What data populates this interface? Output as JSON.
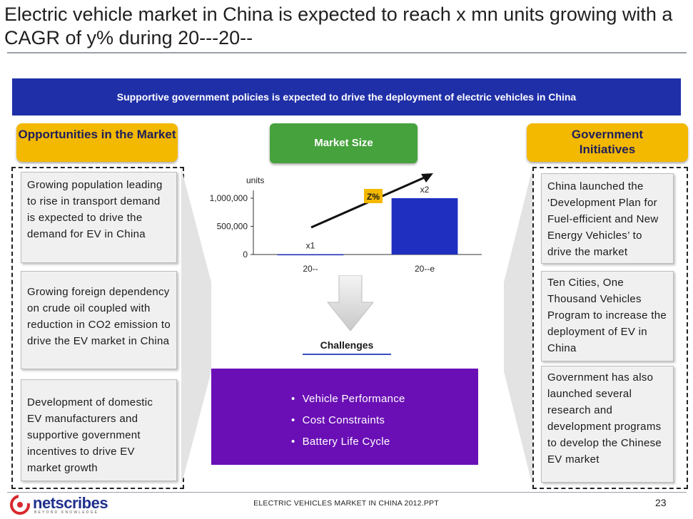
{
  "title": "Electric vehicle market in China is expected to reach x mn units growing with a CAGR of y% during 20---20--",
  "banner": "Supportive government policies is expected to drive the deployment of electric vehicles in China",
  "left_header": "Opportunities in the Market",
  "center_header": "Market Size",
  "right_header": "Government Initiatives",
  "opportunities": [
    "Growing population leading to rise in transport demand is expected to drive the demand for EV in China",
    "Growing foreign dependency  on crude oil coupled with reduction in CO2 emission to drive the EV market in China",
    "Development of domestic EV manufacturers and supportive government incentives to drive EV market growth"
  ],
  "initiatives": [
    "China launched the ‘Development Plan for Fuel-efficient and New Energy Vehicles’ to drive the market",
    "Ten Cities, One Thousand Vehicles Program to increase the deployment of EV in China",
    "Government has also launched several research and development programs to develop the Chinese EV market"
  ],
  "chart_data": {
    "type": "bar",
    "ylabel": "units",
    "categories": [
      "20--",
      "20--e"
    ],
    "values": [
      5000,
      1000000
    ],
    "data_labels": [
      "x1",
      "x2"
    ],
    "ylim": [
      0,
      1000000
    ],
    "yticks": [
      0,
      500000,
      1000000
    ],
    "ytick_labels": [
      "0",
      "500,000",
      "1,000,000"
    ],
    "cagr_label": "Z%",
    "bar_color": "#1f2fc0",
    "grid": false
  },
  "challenges": {
    "label": "Challenges",
    "items": [
      "Vehicle Performance",
      "Cost Constraints",
      "Battery Life Cycle"
    ]
  },
  "footer": {
    "brand": "netscribes",
    "tagline": "BEYOND KNOWLEDGE",
    "text": "ELECTRIC VEHICLES MARKET IN CHINA 2012.PPT",
    "page": "23"
  },
  "colors": {
    "banner": "#1f2fa8",
    "header_yellow": "#f3b800",
    "header_green": "#46a23d",
    "challenges_purple": "#6a0fb5"
  }
}
